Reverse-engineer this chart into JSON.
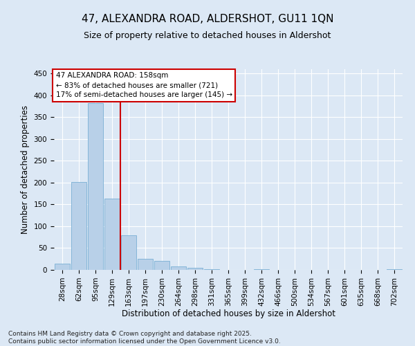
{
  "title": "47, ALEXANDRA ROAD, ALDERSHOT, GU11 1QN",
  "subtitle": "Size of property relative to detached houses in Aldershot",
  "xlabel": "Distribution of detached houses by size in Aldershot",
  "ylabel": "Number of detached properties",
  "footer": "Contains HM Land Registry data © Crown copyright and database right 2025.\nContains public sector information licensed under the Open Government Licence v3.0.",
  "annotation_title": "47 ALEXANDRA ROAD: 158sqm",
  "annotation_line1": "← 83% of detached houses are smaller (721)",
  "annotation_line2": "17% of semi-detached houses are larger (145) →",
  "categories": [
    "28sqm",
    "62sqm",
    "95sqm",
    "129sqm",
    "163sqm",
    "197sqm",
    "230sqm",
    "264sqm",
    "298sqm",
    "331sqm",
    "365sqm",
    "399sqm",
    "432sqm",
    "466sqm",
    "500sqm",
    "534sqm",
    "567sqm",
    "601sqm",
    "635sqm",
    "668sqm",
    "702sqm"
  ],
  "values": [
    15,
    201,
    383,
    163,
    80,
    25,
    20,
    8,
    4,
    1,
    0,
    0,
    1,
    0,
    0,
    0,
    0,
    0,
    0,
    0,
    1
  ],
  "bar_color": "#b8d0e8",
  "bar_edge_color": "#7aafd4",
  "vline_color": "#cc0000",
  "vline_position": 3.5,
  "ylim": [
    0,
    460
  ],
  "yticks": [
    0,
    50,
    100,
    150,
    200,
    250,
    300,
    350,
    400,
    450
  ],
  "background_color": "#dce8f5",
  "plot_background": "#dce8f5",
  "grid_color": "#ffffff",
  "annotation_box_facecolor": "#ffffff",
  "annotation_box_edgecolor": "#cc0000",
  "title_fontsize": 11,
  "subtitle_fontsize": 9,
  "axis_label_fontsize": 8.5,
  "tick_fontsize": 7.5,
  "annotation_fontsize": 7.5,
  "footer_fontsize": 6.5
}
